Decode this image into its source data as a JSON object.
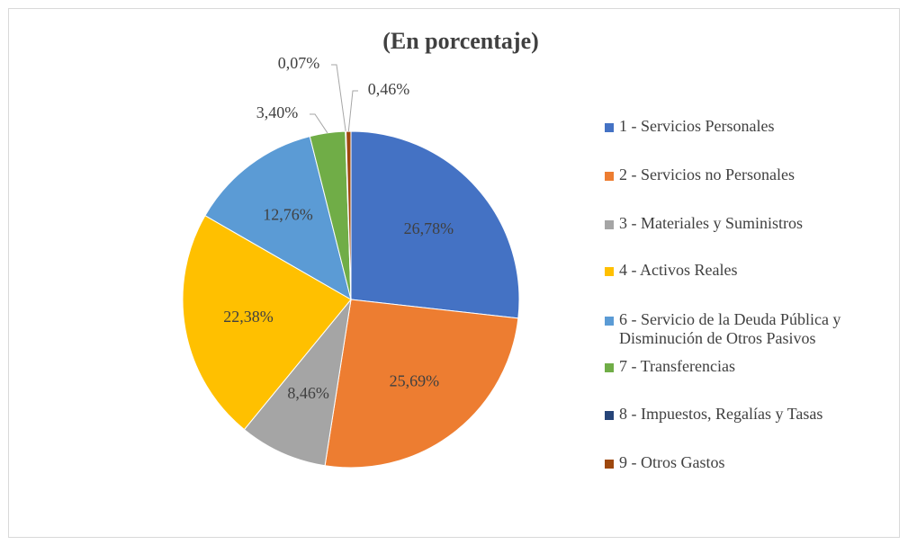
{
  "chart_data": {
    "type": "pie",
    "title": "(En porcentaje)",
    "categories": [
      "1 - Servicios Personales",
      "2 - Servicios no Personales",
      "3 - Materiales y Suministros",
      "4 - Activos Reales",
      "6 - Servicio de la Deuda Pública y Disminución de Otros Pasivos",
      "7 - Transferencias",
      "8 - Impuestos, Regalías y Tasas",
      "9 - Otros Gastos"
    ],
    "values": [
      26.78,
      25.69,
      8.46,
      22.38,
      12.76,
      3.4,
      0.07,
      0.46
    ],
    "value_labels": [
      "26,78%",
      "25,69%",
      "8,46%",
      "22,38%",
      "12,76%",
      "3,40%",
      "0,07%",
      "0,46%"
    ],
    "colors": [
      "#4472c4",
      "#ed7d31",
      "#a5a5a5",
      "#ffc000",
      "#5b9bd5",
      "#70ad47",
      "#264478",
      "#9e480e"
    ],
    "legend": "right"
  }
}
